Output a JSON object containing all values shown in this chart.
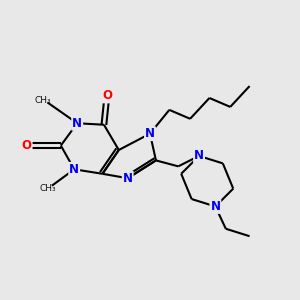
{
  "bg_color": "#e8e8e8",
  "N_color": "#0000ee",
  "O_color": "#ff0000",
  "bond_color": "#000000",
  "bond_lw": 1.5,
  "font_size": 8.5,
  "fig_size": [
    3.0,
    3.0
  ],
  "dpi": 100,
  "xlim": [
    0,
    10
  ],
  "ylim": [
    0,
    10
  ]
}
